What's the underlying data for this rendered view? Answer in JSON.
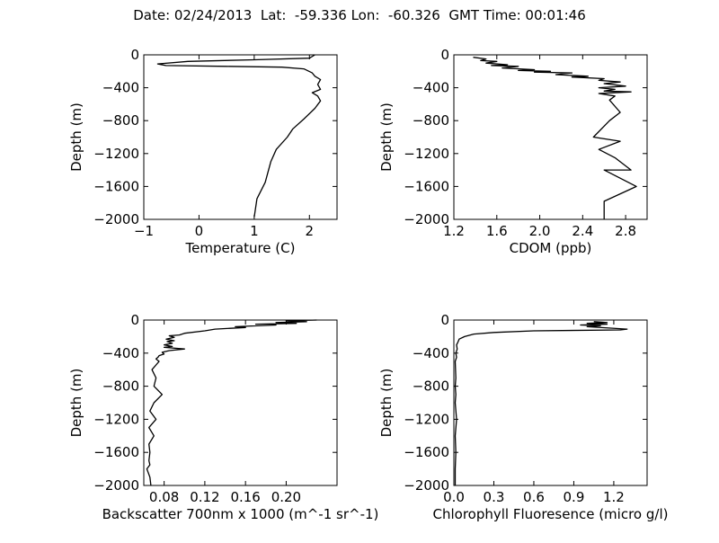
{
  "title": "Date: 02/24/2013  Lat:  -59.336 Lon:  -60.326  GMT Time: 00:01:46",
  "chart_data": [
    {
      "type": "line",
      "xlabel": "Temperature (C)",
      "ylabel": "Depth (m)",
      "xlim": [
        -1,
        2.5
      ],
      "ylim": [
        -2000,
        0
      ],
      "xticks": [
        -1,
        0,
        1,
        2
      ],
      "xtick_labels": [
        "−1",
        "0",
        "1",
        "2"
      ],
      "yticks": [
        0,
        -400,
        -800,
        -1200,
        -1600,
        -2000
      ],
      "ytick_labels": [
        "0",
        "−400",
        "−800",
        "−1200",
        "−1600",
        "−2000"
      ],
      "series": [
        {
          "x": [
            2.1,
            2.0,
            1.0,
            -0.2,
            -0.75,
            -0.6,
            0.5,
            1.5,
            1.9,
            2.05,
            2.1,
            2.2,
            2.15,
            2.2,
            2.05,
            2.15,
            2.2,
            2.1,
            1.9,
            1.7,
            1.6,
            1.4,
            1.3,
            1.2,
            1.05,
            1.0
          ],
          "y": [
            0,
            -40,
            -60,
            -80,
            -110,
            -130,
            -140,
            -150,
            -170,
            -220,
            -260,
            -300,
            -360,
            -420,
            -460,
            -500,
            -560,
            -650,
            -780,
            -900,
            -1000,
            -1150,
            -1300,
            -1550,
            -1750,
            -1970
          ]
        }
      ]
    },
    {
      "type": "line",
      "xlabel": "CDOM (ppb)",
      "ylabel": "Depth (m)",
      "xlim": [
        1.2,
        3.0
      ],
      "ylim": [
        -2000,
        0
      ],
      "xticks": [
        1.2,
        1.6,
        2.0,
        2.4,
        2.8
      ],
      "xtick_labels": [
        "1.2",
        "1.6",
        "2.0",
        "2.4",
        "2.8"
      ],
      "yticks": [
        0,
        -400,
        -800,
        -1200,
        -1600,
        -2000
      ],
      "ytick_labels": [
        "0",
        "−400",
        "−800",
        "−1200",
        "−1600",
        "−2000"
      ],
      "series": [
        {
          "x": [
            1.38,
            1.5,
            1.45,
            1.6,
            1.5,
            1.7,
            1.55,
            1.8,
            1.65,
            1.95,
            1.8,
            2.1,
            1.95,
            2.3,
            2.15,
            2.45,
            2.3,
            2.6,
            2.55,
            2.75,
            2.6,
            2.8,
            2.55,
            2.7,
            2.6,
            2.85,
            2.55,
            2.7,
            2.65,
            2.75,
            2.65,
            2.5,
            2.75,
            2.55,
            2.7,
            2.85,
            2.6,
            2.9,
            2.6,
            2.6
          ],
          "y": [
            -30,
            -50,
            -70,
            -80,
            -100,
            -120,
            -130,
            -140,
            -160,
            -180,
            -190,
            -200,
            -210,
            -220,
            -240,
            -260,
            -270,
            -290,
            -310,
            -330,
            -350,
            -380,
            -400,
            -420,
            -440,
            -450,
            -470,
            -500,
            -550,
            -700,
            -800,
            -1000,
            -1050,
            -1150,
            -1250,
            -1400,
            -1400,
            -1600,
            -1780,
            -2000
          ]
        }
      ]
    },
    {
      "type": "line",
      "xlabel": "Backscatter 700nm x 1000 (m^-1 sr^-1)",
      "ylabel": "Depth (m)",
      "xlim": [
        0.06,
        0.25
      ],
      "ylim": [
        -2000,
        0
      ],
      "xticks": [
        0.08,
        0.12,
        0.16,
        0.2
      ],
      "xtick_labels": [
        "0.08",
        "0.12",
        "0.16",
        "0.20"
      ],
      "yticks": [
        0,
        -400,
        -800,
        -1200,
        -1600,
        -2000
      ],
      "ytick_labels": [
        "0",
        "−400",
        "−800",
        "−1200",
        "−1600",
        "−2000"
      ],
      "series": [
        {
          "x": [
            0.23,
            0.2,
            0.22,
            0.19,
            0.21,
            0.17,
            0.19,
            0.15,
            0.16,
            0.13,
            0.12,
            0.1,
            0.095,
            0.085,
            0.09,
            0.082,
            0.09,
            0.083,
            0.088,
            0.08,
            0.088,
            0.08,
            0.1,
            0.085,
            0.078,
            0.08,
            0.075,
            0.074,
            0.072,
            0.075,
            0.068,
            0.072,
            0.07,
            0.078,
            0.07,
            0.066,
            0.072,
            0.065,
            0.07,
            0.065,
            0.066,
            0.065,
            0.066,
            0.063,
            0.066,
            0.067
          ],
          "y": [
            0,
            -10,
            -20,
            -30,
            -40,
            -50,
            -60,
            -80,
            -90,
            -110,
            -130,
            -160,
            -180,
            -190,
            -210,
            -230,
            -250,
            -260,
            -280,
            -300,
            -320,
            -330,
            -350,
            -370,
            -390,
            -410,
            -430,
            -450,
            -470,
            -500,
            -600,
            -700,
            -800,
            -900,
            -1000,
            -1100,
            -1200,
            -1300,
            -1400,
            -1500,
            -1600,
            -1700,
            -1750,
            -1800,
            -1900,
            -2000
          ]
        }
      ]
    },
    {
      "type": "line",
      "xlabel": "Chlorophyll Fluoresence (micro g/l)",
      "ylabel": "Depth (m)",
      "xlim": [
        0,
        1.45
      ],
      "ylim": [
        -2000,
        0
      ],
      "xticks": [
        0,
        0.3,
        0.6,
        0.9,
        1.2
      ],
      "xtick_labels": [
        "0.0",
        "0.3",
        "0.6",
        "0.9",
        "1.2"
      ],
      "yticks": [
        0,
        -400,
        -800,
        -1200,
        -1600,
        -2000
      ],
      "ytick_labels": [
        "0",
        "−400",
        "−800",
        "−1200",
        "−1600",
        "−2000"
      ],
      "series": [
        {
          "x": [
            1.05,
            1.15,
            1.0,
            1.15,
            0.95,
            1.1,
            1.0,
            1.3,
            1.25,
            0.6,
            0.3,
            0.15,
            0.08,
            0.04,
            0.03,
            0.02,
            0.025,
            0.015,
            0.02,
            0.01,
            0.015,
            0.01,
            0.015,
            0.01,
            0.02,
            0.01,
            0.015,
            0.01,
            0.01
          ],
          "y": [
            -20,
            -30,
            -40,
            -50,
            -60,
            -70,
            -80,
            -110,
            -120,
            -130,
            -150,
            -170,
            -200,
            -230,
            -270,
            -300,
            -350,
            -400,
            -450,
            -500,
            -700,
            -800,
            -900,
            -1000,
            -1200,
            -1400,
            -1600,
            -1800,
            -2000
          ]
        }
      ]
    }
  ]
}
